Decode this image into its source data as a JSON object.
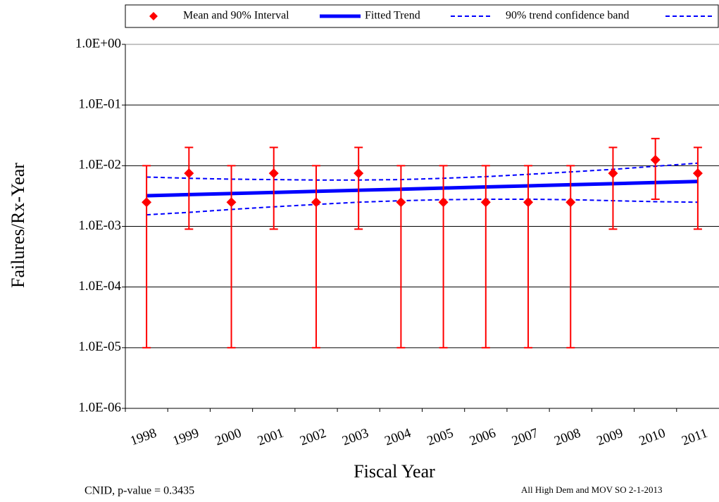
{
  "chart_data": {
    "type": "line",
    "x_label": "Fiscal Year",
    "y_label": "Failures/Rx-Year",
    "log_y": true,
    "grid": true,
    "categories": [
      "1998",
      "1999",
      "2000",
      "2001",
      "2002",
      "2003",
      "2004",
      "2005",
      "2006",
      "2007",
      "2008",
      "2009",
      "2010",
      "2011"
    ],
    "ylim": [
      1e-06,
      1
    ],
    "yticks": [
      {
        "value": 1e-06,
        "label": "1.0E-06"
      },
      {
        "value": 1e-05,
        "label": "1.0E-05"
      },
      {
        "value": 0.0001,
        "label": "1.0E-04"
      },
      {
        "value": 0.001,
        "label": "1.0E-03"
      },
      {
        "value": 0.01,
        "label": "1.0E-02"
      },
      {
        "value": 0.1,
        "label": "1.0E-01"
      },
      {
        "value": 1,
        "label": "1.0E+00"
      }
    ],
    "series": [
      {
        "name": "Mean and 90% Interval",
        "color": "#ff0000",
        "style": "errorbar",
        "values": [
          0.0025,
          0.0075,
          0.0025,
          0.0075,
          0.0025,
          0.0075,
          0.0025,
          0.0025,
          0.0025,
          0.0025,
          0.0025,
          0.0075,
          0.0125,
          0.0075
        ],
        "lower": [
          1e-05,
          0.0009,
          1e-05,
          0.0009,
          1e-05,
          0.0009,
          1e-05,
          1e-05,
          1e-05,
          1e-05,
          1e-05,
          0.0009,
          0.0028,
          0.0009
        ],
        "upper": [
          0.01,
          0.02,
          0.01,
          0.02,
          0.01,
          0.02,
          0.01,
          0.01,
          0.01,
          0.01,
          0.01,
          0.02,
          0.028,
          0.02
        ]
      },
      {
        "name": "Fitted Trend",
        "color": "#0000ff",
        "style": "line",
        "values": [
          0.0032,
          0.00334,
          0.00348,
          0.00362,
          0.00378,
          0.00394,
          0.0041,
          0.00428,
          0.00446,
          0.00465,
          0.00485,
          0.00505,
          0.00527,
          0.0055
        ]
      },
      {
        "name": "90% trend confidence band",
        "color": "#0000ff",
        "style": "band",
        "upper": [
          0.0065,
          0.0062,
          0.006,
          0.0059,
          0.0058,
          0.0058,
          0.0059,
          0.0062,
          0.0066,
          0.0072,
          0.0079,
          0.0087,
          0.0098,
          0.011
        ],
        "lower": [
          0.00155,
          0.0017,
          0.0019,
          0.0021,
          0.0023,
          0.0025,
          0.00265,
          0.00275,
          0.0028,
          0.0028,
          0.00275,
          0.00265,
          0.00255,
          0.0025
        ]
      }
    ],
    "annotations": [
      "CNID, p-value = 0.3435",
      "All High Dem and MOV SO 2-1-2013"
    ]
  }
}
